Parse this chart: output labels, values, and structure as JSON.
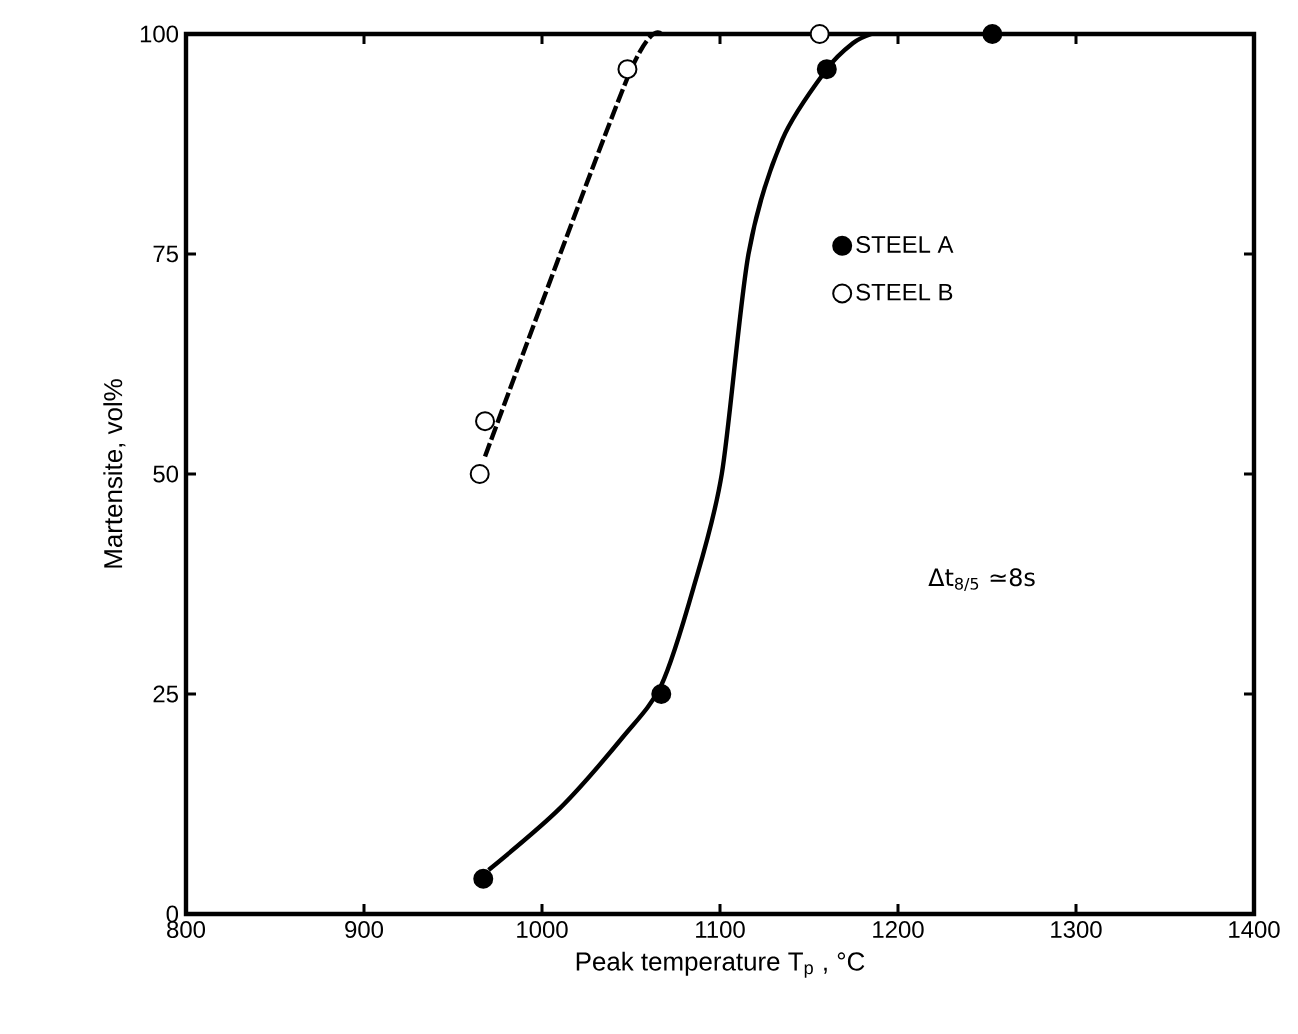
{
  "chart_data": {
    "type": "scatter",
    "xlabel": "Peak temperature  T$_{p}$ , °C",
    "ylabel": "Martensite, vol%",
    "xlim": [
      800,
      1400
    ],
    "ylim": [
      0,
      100
    ],
    "xticks": [
      800,
      900,
      1000,
      1100,
      1200,
      1300,
      1400
    ],
    "yticks": [
      0,
      25,
      50,
      75,
      100
    ],
    "grid": false,
    "legend": "top right",
    "annotations": [
      "Δt$_{8/5}$ ≃8s"
    ],
    "series": [
      {
        "name": "STEEL A",
        "marker": "circle",
        "color": "#000000",
        "x": [
          967,
          1067,
          1160,
          1253
        ],
        "values": [
          4,
          25,
          96,
          100
        ]
      },
      {
        "name": "STEEL B",
        "marker": "circle",
        "color": "#ffffff",
        "x": [
          965,
          968,
          1048,
          1156
        ],
        "values": [
          50,
          56,
          96,
          100
        ]
      },
      {
        "type": "line",
        "color": "#000000",
        "line_style": "solid",
        "marker": "none",
        "x": [
          970,
          1010,
          1045,
          1067,
          1085,
          1101,
          1116,
          1135,
          1160,
          1175,
          1185
        ],
        "values": [
          5,
          12,
          20,
          26,
          37,
          50,
          75,
          88,
          96,
          99,
          100
        ]
      },
      {
        "type": "line",
        "color": "#000000",
        "line_style": "dashed",
        "marker": "none",
        "x": [
          968,
          1048,
          1067
        ],
        "values": [
          52,
          95,
          100
        ]
      }
    ]
  }
}
